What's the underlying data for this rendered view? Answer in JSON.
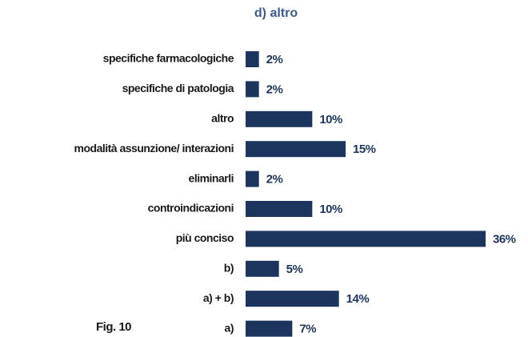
{
  "chart_data": {
    "type": "barh",
    "title": "d) altro",
    "categories": [
      "specifiche farmacologiche",
      "specifiche di patologia",
      "altro",
      "modalità assunzione/ interazioni",
      "eliminarli",
      "controindicazioni",
      "più conciso",
      "b)",
      "a) + b)",
      "a)"
    ],
    "values": [
      2,
      2,
      10,
      15,
      2,
      10,
      36,
      5,
      14,
      7
    ],
    "value_labels": [
      "2%",
      "2%",
      "10%",
      "15%",
      "2%",
      "10%",
      "36%",
      "5%",
      "14%",
      "7%"
    ],
    "color": "#1c355e",
    "annotation": "Fig. 10"
  }
}
